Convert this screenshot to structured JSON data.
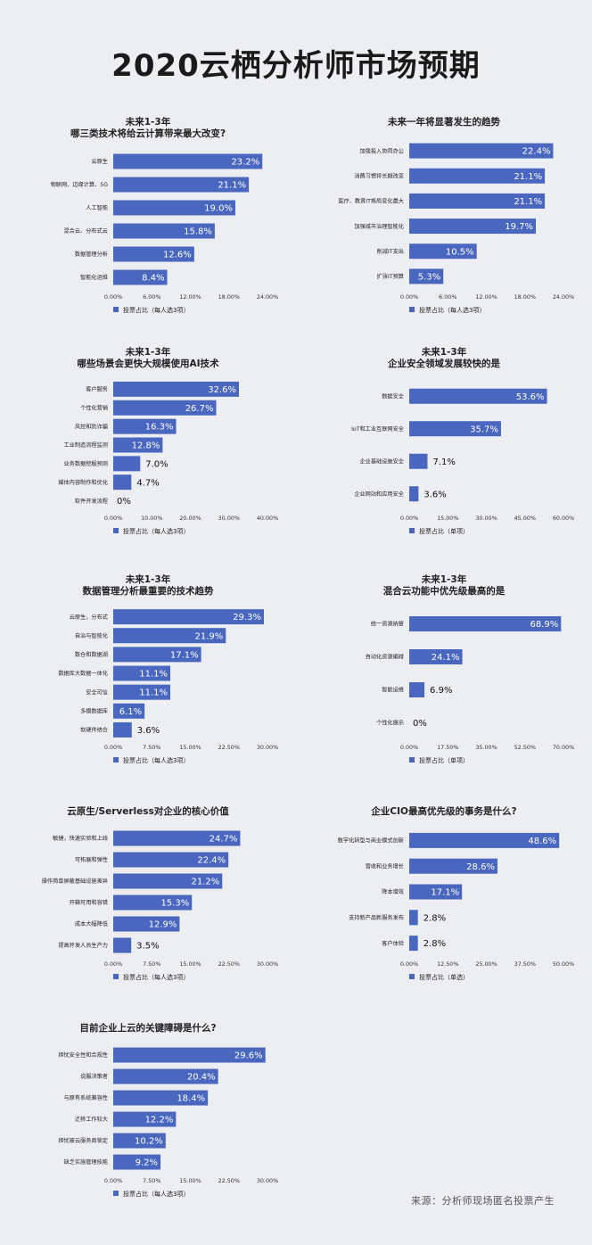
{
  "page": {
    "title": "2020云栖分析师市场预期",
    "source": "来源：分析师现场匿名投票产生"
  },
  "colors": {
    "bar": "#4a67bf",
    "background": "#eceef2",
    "value_inside": "#ffffff",
    "value_outside": "#111111"
  },
  "chart_data": [
    {
      "type": "bar",
      "orientation": "horizontal",
      "title_lines": [
        "未来1-3年",
        "哪三类技术将给云计算带来最大改变?"
      ],
      "categories": [
        "云原生",
        "物联网、边缘计算、5G",
        "人工智能",
        "混合云、分布式云",
        "数据管理分析",
        "智能化运维"
      ],
      "values": [
        23.2,
        21.1,
        19.0,
        15.8,
        12.6,
        8.4
      ],
      "value_labels": [
        "23.2%",
        "21.1%",
        "19.0%",
        "15.8%",
        "12.6%",
        "8.4%"
      ],
      "xlim": [
        0,
        24
      ],
      "xticks": [
        "0.00%",
        "6.00%",
        "12.00%",
        "18.00%",
        "24.00%"
      ],
      "legend": "投票占比（每人选3项）",
      "legend_position": "bottom-left"
    },
    {
      "type": "bar",
      "orientation": "horizontal",
      "title_lines": [
        "未来一年将显著发生的趋势"
      ],
      "categories": [
        "加强投入协同办公",
        "消费习惯将长期改变",
        "医疗、教育IT格局变化最大",
        "加强城市治理智能化",
        "削减IT支出",
        "扩张IT预算"
      ],
      "values": [
        22.4,
        21.1,
        21.1,
        19.7,
        10.5,
        5.3
      ],
      "value_labels": [
        "22.4%",
        "21.1%",
        "21.1%",
        "19.7%",
        "10.5%",
        "5.3%"
      ],
      "xlim": [
        0,
        24
      ],
      "xticks": [
        "0.00%",
        "6.00%",
        "12.00%",
        "18.00%",
        "24.00%"
      ],
      "legend": "投票占比（每人选3项）",
      "legend_position": "bottom-left"
    },
    {
      "type": "bar",
      "orientation": "horizontal",
      "title_lines": [
        "未来1-3年",
        "哪些场景会更快大规模使用AI技术"
      ],
      "categories": [
        "客户服务",
        "个性化营销",
        "风控和防诈骗",
        "工业制造流程监测",
        "业务数据挖掘预测",
        "媒体内容制作和优化",
        "软件开发流程"
      ],
      "values": [
        32.6,
        26.7,
        16.3,
        12.8,
        7.0,
        4.7,
        0
      ],
      "value_labels": [
        "32.6%",
        "26.7%",
        "16.3%",
        "12.8%",
        "7.0%",
        "4.7%",
        "0%"
      ],
      "xlim": [
        0,
        40
      ],
      "xticks": [
        "0.00%",
        "10.00%",
        "20.00%",
        "30.00%",
        "40.00%"
      ],
      "legend": "投票占比（每人选3项）",
      "legend_position": "bottom-left"
    },
    {
      "type": "bar",
      "orientation": "horizontal",
      "title_lines": [
        "未来1-3年",
        "企业安全领域发展较快的是"
      ],
      "categories": [
        "数据安全",
        "IoT和工业互联网安全",
        "企业基础设施安全",
        "企业网站和应用安全"
      ],
      "values": [
        53.6,
        35.7,
        7.1,
        3.6
      ],
      "value_labels": [
        "53.6%",
        "35.7%",
        "7.1%",
        "3.6%"
      ],
      "xlim": [
        0,
        60
      ],
      "xticks": [
        "0.00%",
        "15.00%",
        "30.00%",
        "45.00%",
        "60.00%"
      ],
      "legend": "投票占比（单项）",
      "legend_position": "bottom-left"
    },
    {
      "type": "bar",
      "orientation": "horizontal",
      "title_lines": [
        "未来1-3年",
        "数据管理分析最重要的技术趋势"
      ],
      "categories": [
        "云原生，分布式",
        "自治与智能化",
        "数仓和数据湖",
        "数据库大数据一体化",
        "安全可信",
        "多模数据库",
        "软硬件结合"
      ],
      "values": [
        29.3,
        21.9,
        17.1,
        11.1,
        11.1,
        6.1,
        3.6
      ],
      "value_labels": [
        "29.3%",
        "21.9%",
        "17.1%",
        "11.1%",
        "11.1%",
        "6.1%",
        "3.6%"
      ],
      "xlim": [
        0,
        30
      ],
      "xticks": [
        "0.00%",
        "7.50%",
        "15.00%",
        "22.50%",
        "30.00%"
      ],
      "legend": "投票占比（每人选3项）",
      "legend_position": "bottom-left"
    },
    {
      "type": "bar",
      "orientation": "horizontal",
      "title_lines": [
        "未来1-3年",
        "混合云功能中优先级最高的是"
      ],
      "categories": [
        "统一资源纳管",
        "自动化资源编排",
        "智能运维",
        "个性化展示"
      ],
      "values": [
        68.9,
        24.1,
        6.9,
        0
      ],
      "value_labels": [
        "68.9%",
        "24.1%",
        "6.9%",
        "0%"
      ],
      "xlim": [
        0,
        70
      ],
      "xticks": [
        "0.00%",
        "17.50%",
        "35.00%",
        "52.50%",
        "70.00%"
      ],
      "legend": "投票占比（单项）",
      "legend_position": "bottom-left"
    },
    {
      "type": "bar",
      "orientation": "horizontal",
      "title_lines": [
        "云原生/Serverless对企业的核心价值"
      ],
      "categories": [
        "敏捷，快速实验和上线",
        "可拓展和弹性",
        "操作简单屏蔽基础设施差异",
        "开箱可用和容错",
        "成本大幅降低",
        "提高开发人员生产力"
      ],
      "values": [
        24.7,
        22.4,
        21.2,
        15.3,
        12.9,
        3.5
      ],
      "value_labels": [
        "24.7%",
        "22.4%",
        "21.2%",
        "15.3%",
        "12.9%",
        "3.5%"
      ],
      "xlim": [
        0,
        30
      ],
      "xticks": [
        "0.00%",
        "7.50%",
        "15.00%",
        "22.50%",
        "30.00%"
      ],
      "legend": "投票占比（每人选3项）",
      "legend_position": "bottom-left"
    },
    {
      "type": "bar",
      "orientation": "horizontal",
      "title_lines": [
        "企业CIO最高优先级的事务是什么?"
      ],
      "categories": [
        "数字化转型与商业模式创新",
        "营收和业务增长",
        "降本增效",
        "支持新产品新服务发布",
        "客户体验"
      ],
      "values": [
        48.6,
        28.6,
        17.1,
        2.8,
        2.8
      ],
      "value_labels": [
        "48.6%",
        "28.6%",
        "17.1%",
        "2.8%",
        "2.8%"
      ],
      "xlim": [
        0,
        50
      ],
      "xticks": [
        "0.00%",
        "12.50%",
        "25.00%",
        "37.50%",
        "50.00%"
      ],
      "legend": "投票占比（单选）",
      "legend_position": "bottom-left"
    },
    {
      "type": "bar",
      "orientation": "horizontal",
      "title_lines": [
        "目前企业上云的关键障碍是什么?"
      ],
      "categories": [
        "担忧安全性和合规性",
        "说服决策者",
        "与原有系统兼容性",
        "迁移工作较大",
        "担忧被云服务商锁定",
        "缺乏实施管理技能"
      ],
      "values": [
        29.6,
        20.4,
        18.4,
        12.2,
        10.2,
        9.2
      ],
      "value_labels": [
        "29.6%",
        "20.4%",
        "18.4%",
        "12.2%",
        "10.2%",
        "9.2%"
      ],
      "xlim": [
        0,
        30
      ],
      "xticks": [
        "0.00%",
        "7.50%",
        "15.00%",
        "22.50%",
        "30.00%"
      ],
      "legend": "投票占比（每人选3项）",
      "legend_position": "bottom-left"
    }
  ]
}
